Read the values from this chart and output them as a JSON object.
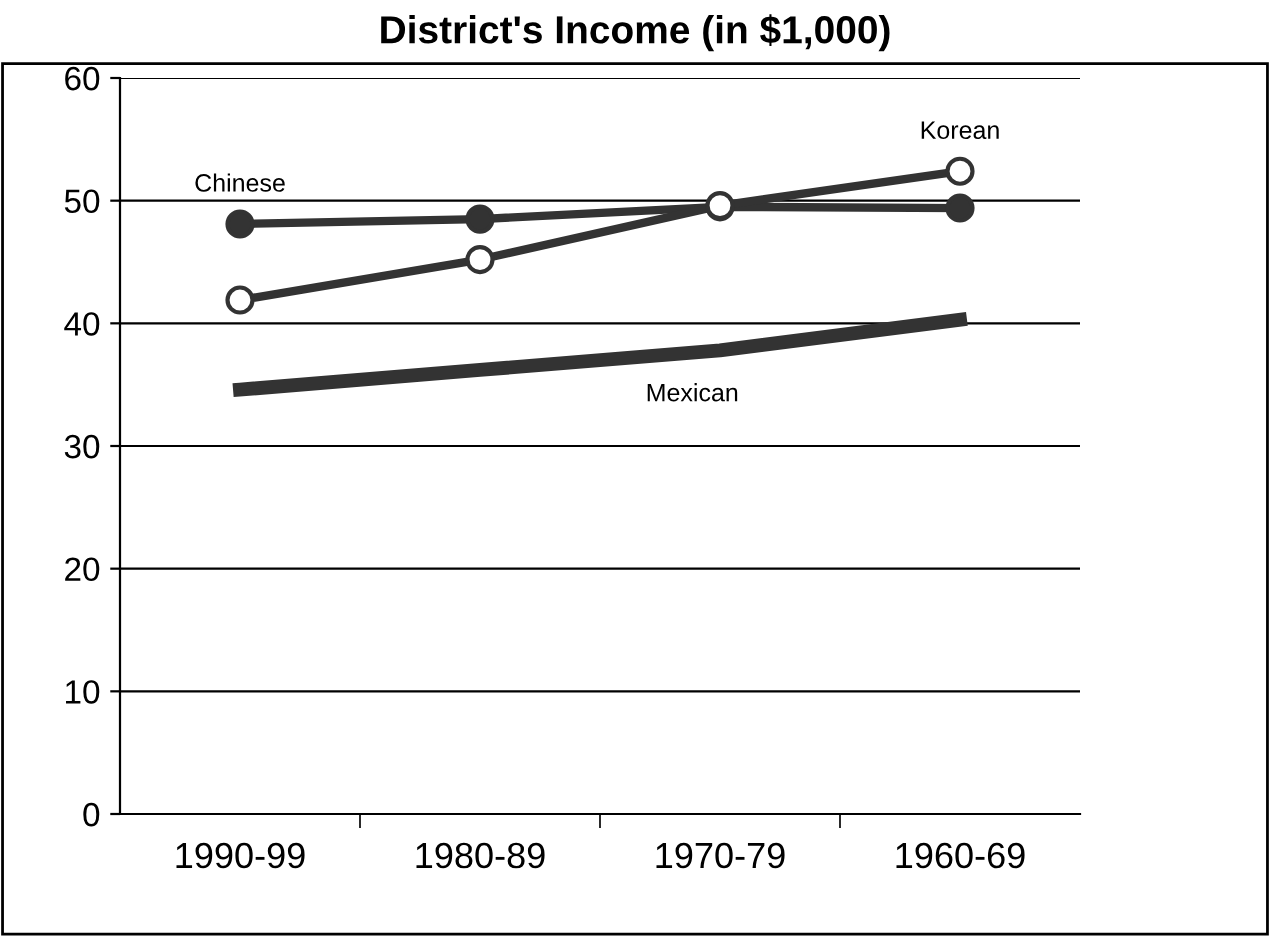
{
  "chart_data": {
    "type": "line",
    "title": "District's Income (in $1,000)",
    "categories": [
      "1990-99",
      "1980-89",
      "1970-79",
      "1960-69"
    ],
    "series": [
      {
        "name": "Chinese",
        "color": "#333333",
        "values": [
          48.1,
          48.5,
          49.5,
          49.4
        ],
        "marker": "circle"
      },
      {
        "name": "Korean",
        "color": "#333333",
        "values": [
          41.9,
          45.2,
          49.6,
          52.4
        ],
        "marker": "circle"
      },
      {
        "name": "Mexican",
        "color": "#333333",
        "values": [
          34.6,
          36.2,
          37.8,
          40.3
        ],
        "marker": "none"
      }
    ],
    "ylim": [
      0,
      60
    ],
    "yticks": [
      0,
      10,
      20,
      30,
      40,
      50,
      60
    ],
    "grid": "y",
    "legend": false,
    "line_style": "solid"
  }
}
